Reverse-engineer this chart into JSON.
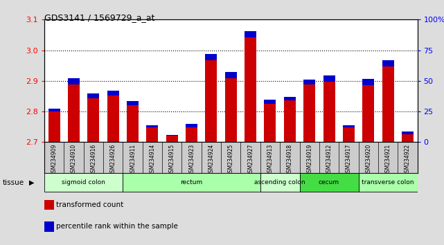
{
  "title": "GDS3141 / 1569729_a_at",
  "samples": [
    "GSM234909",
    "GSM234910",
    "GSM234916",
    "GSM234926",
    "GSM234911",
    "GSM234914",
    "GSM234915",
    "GSM234923",
    "GSM234924",
    "GSM234925",
    "GSM234927",
    "GSM234913",
    "GSM234918",
    "GSM234919",
    "GSM234912",
    "GSM234917",
    "GSM234920",
    "GSM234921",
    "GSM234922"
  ],
  "red_values": [
    2.801,
    2.889,
    2.843,
    2.853,
    2.821,
    2.748,
    2.72,
    2.748,
    2.968,
    2.909,
    3.042,
    2.826,
    2.836,
    2.889,
    2.898,
    2.748,
    2.887,
    2.948,
    2.726
  ],
  "blue_values_pct": [
    2,
    5,
    4,
    4,
    3,
    2,
    1,
    3,
    5,
    5,
    5,
    3,
    3,
    4,
    5,
    2,
    5,
    5,
    2
  ],
  "ylim_left": [
    2.7,
    3.1
  ],
  "ylim_right": [
    0,
    100
  ],
  "yticks_left": [
    2.7,
    2.8,
    2.9,
    3.0,
    3.1
  ],
  "yticks_right": [
    0,
    25,
    50,
    75,
    100
  ],
  "ytick_labels_right": [
    "0",
    "25",
    "50",
    "75",
    "100%"
  ],
  "tissue_groups": [
    {
      "label": "sigmoid colon",
      "start": 0,
      "end": 4,
      "color": "#ccffcc"
    },
    {
      "label": "rectum",
      "start": 4,
      "end": 11,
      "color": "#aaffaa"
    },
    {
      "label": "ascending colon",
      "start": 11,
      "end": 13,
      "color": "#ccffcc"
    },
    {
      "label": "cecum",
      "start": 13,
      "end": 16,
      "color": "#44dd44"
    },
    {
      "label": "transverse colon",
      "start": 16,
      "end": 19,
      "color": "#aaffaa"
    }
  ],
  "bar_width": 0.6,
  "red_color": "#cc0000",
  "blue_color": "#0000cc",
  "baseline": 2.7,
  "background_color": "#dddddd",
  "plot_bg_color": "#ffffff",
  "xtick_bg_color": "#cccccc",
  "grid_color": "#000000"
}
